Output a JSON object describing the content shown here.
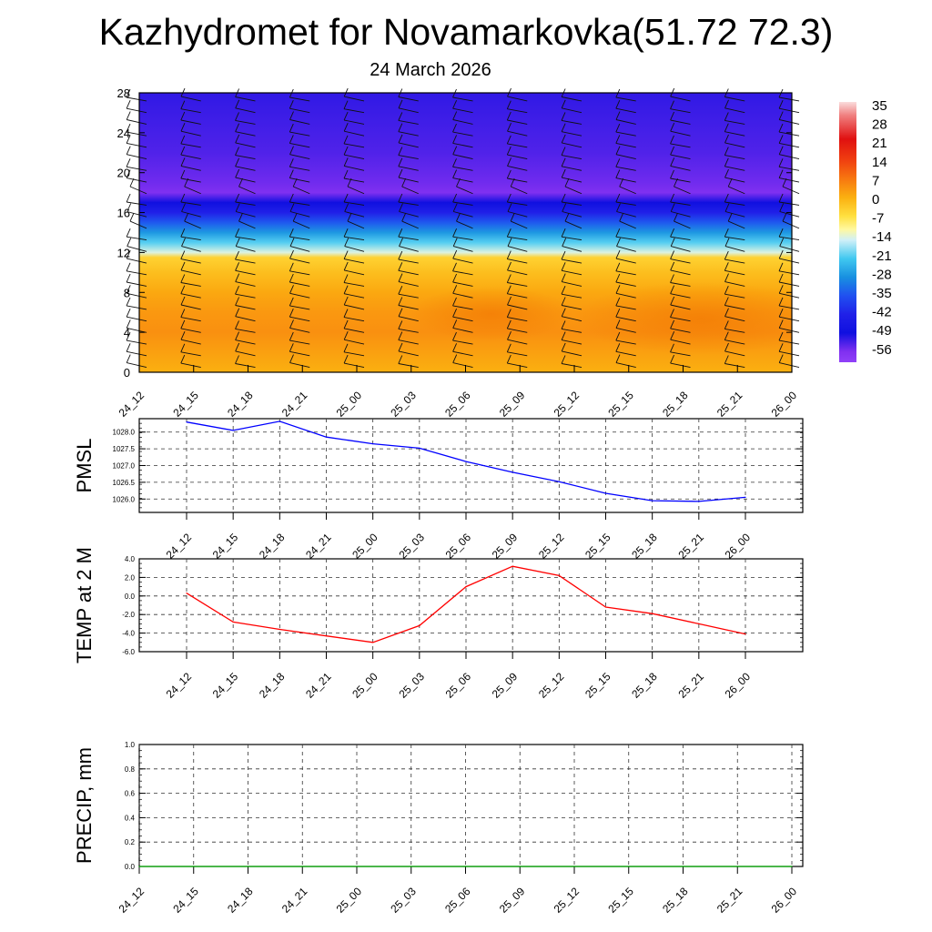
{
  "page": {
    "title": "Kazhydromet for Novamarkovka(51.72 72.3)",
    "subtitle": "24 March 2026"
  },
  "chart_data": [
    {
      "type": "heatmap",
      "id": "cross-section",
      "x": [
        "24_12",
        "24_15",
        "24_18",
        "24_21",
        "25_00",
        "25_03",
        "25_06",
        "25_09",
        "25_12",
        "25_15",
        "25_18",
        "25_21",
        "26_00"
      ],
      "ylim": [
        0,
        28
      ],
      "yticks": [
        0,
        4,
        8,
        12,
        16,
        20,
        24,
        28
      ],
      "temperature_profile": [
        {
          "height": 0,
          "temp": 2
        },
        {
          "height": 2,
          "temp": 4
        },
        {
          "height": 4,
          "temp": 6
        },
        {
          "height": 6,
          "temp": 5
        },
        {
          "height": 8,
          "temp": 3
        },
        {
          "height": 10,
          "temp": 0
        },
        {
          "height": 11.5,
          "temp": -3
        },
        {
          "height": 12,
          "temp": -13
        },
        {
          "height": 13,
          "temp": -20
        },
        {
          "height": 14,
          "temp": -27
        },
        {
          "height": 15,
          "temp": -34
        },
        {
          "height": 16,
          "temp": -42
        },
        {
          "height": 17,
          "temp": -49
        },
        {
          "height": 18,
          "temp": -56
        },
        {
          "height": 19,
          "temp": -55
        },
        {
          "height": 22,
          "temp": -53
        },
        {
          "height": 25,
          "temp": -52
        },
        {
          "height": 28,
          "temp": -51
        }
      ],
      "colorbar": {
        "labels": [
          "35",
          "28",
          "21",
          "14",
          "7",
          "0",
          "-7",
          "-14",
          "-21",
          "-28",
          "-35",
          "-42",
          "-49",
          "-56"
        ],
        "stops": [
          {
            "value": 38,
            "color": "#fadcdc"
          },
          {
            "value": 33,
            "color": "#f08080"
          },
          {
            "value": 24,
            "color": "#e01010"
          },
          {
            "value": 16,
            "color": "#f04010"
          },
          {
            "value": 8,
            "color": "#f88010"
          },
          {
            "value": 2,
            "color": "#fbb010"
          },
          {
            "value": -5,
            "color": "#ffe040"
          },
          {
            "value": -10,
            "color": "#fff8a0"
          },
          {
            "value": -14,
            "color": "#d0f0f8"
          },
          {
            "value": -21,
            "color": "#40c8f0"
          },
          {
            "value": -28,
            "color": "#1890e0"
          },
          {
            "value": -35,
            "color": "#2050f0"
          },
          {
            "value": -42,
            "color": "#2020e8"
          },
          {
            "value": -49,
            "color": "#1010e0"
          },
          {
            "value": -56,
            "color": "#8030f0"
          },
          {
            "value": -60,
            "color": "#9040f8"
          }
        ]
      },
      "wind_barbs": "multiple per time step and height level"
    },
    {
      "type": "line",
      "id": "pmsl",
      "ylabel": "PMSL",
      "x": [
        "24_12",
        "24_15",
        "24_18",
        "24_21",
        "25_00",
        "25_03",
        "25_06",
        "25_09",
        "25_12",
        "25_15",
        "25_18",
        "25_21",
        "26_00"
      ],
      "values": [
        1028.3,
        1028.05,
        1028.32,
        1027.85,
        1027.65,
        1027.52,
        1027.12,
        1026.8,
        1026.52,
        1026.17,
        1025.95,
        1025.93,
        1026.05
      ],
      "ylim": [
        1025.6,
        1028.4
      ],
      "yticks": [
        "1026.0",
        "1026.5",
        "1027.0",
        "1027.5",
        "1028.0"
      ],
      "color": "#0000ff",
      "grid": true
    },
    {
      "type": "line",
      "id": "temp",
      "ylabel": "TEMP at 2 M",
      "x": [
        "24_12",
        "24_15",
        "24_18",
        "24_21",
        "25_00",
        "25_03",
        "25_06",
        "25_09",
        "25_12",
        "25_15",
        "25_18",
        "25_21",
        "26_00"
      ],
      "values": [
        0.3,
        -2.8,
        -3.6,
        -4.3,
        -5.0,
        -3.2,
        1.0,
        3.2,
        2.2,
        -1.2,
        -1.9,
        -3.0,
        -4.1
      ],
      "ylim": [
        -6.0,
        4.0
      ],
      "yticks": [
        "-6.0",
        "-4.0",
        "-2.0",
        "0.0",
        "2.0",
        "4.0"
      ],
      "color": "#ff0000",
      "grid": true
    },
    {
      "type": "line",
      "id": "precip",
      "ylabel": "PRECIP, mm",
      "x": [
        "24_12",
        "24_15",
        "24_18",
        "24_21",
        "25_00",
        "25_03",
        "25_06",
        "25_09",
        "25_12",
        "25_15",
        "25_18",
        "25_21",
        "26_00"
      ],
      "values": [
        0,
        0,
        0,
        0,
        0,
        0,
        0,
        0,
        0,
        0,
        0,
        0,
        0
      ],
      "ylim": [
        0.0,
        1.0
      ],
      "yticks": [
        "0.0",
        "0.2",
        "0.4",
        "0.6",
        "0.8",
        "1.0"
      ],
      "color": "#00aa00",
      "grid": true
    }
  ]
}
